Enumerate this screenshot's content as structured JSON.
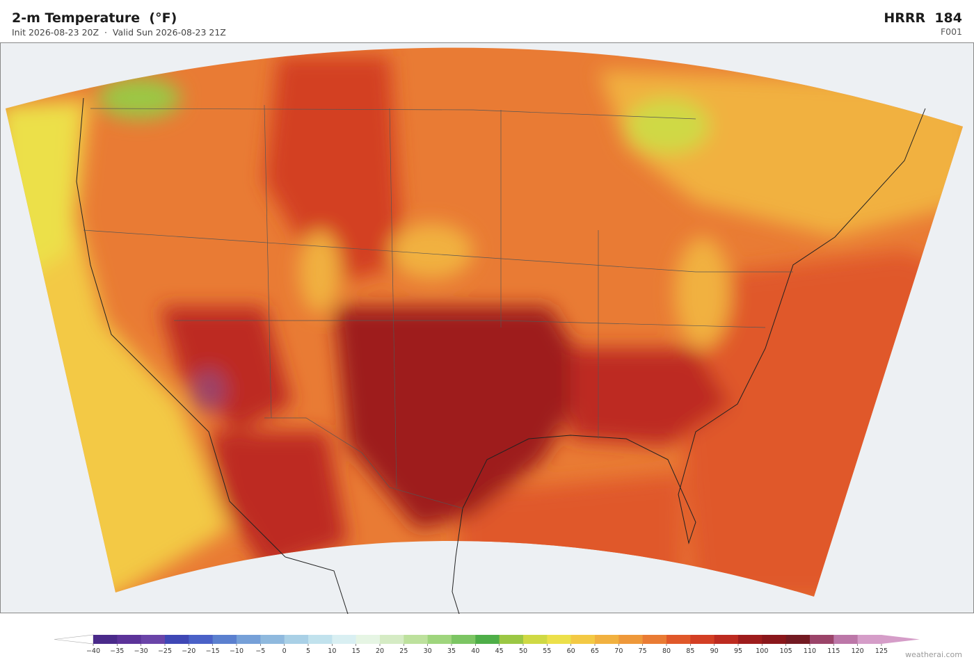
{
  "header": {
    "title": "2-m Temperature  (°F)",
    "subtitle": "Init 2026-08-23 20Z  ·  Valid Sun 2026-08-23 21Z",
    "model": "HRRR  184",
    "forecast_hour": "F001"
  },
  "colorbar": {
    "ticks": [
      "−40",
      "−35",
      "−30",
      "−25",
      "−20",
      "−15",
      "−10",
      "−5",
      "0",
      "5",
      "10",
      "15",
      "20",
      "25",
      "30",
      "35",
      "40",
      "45",
      "50",
      "55",
      "60",
      "65",
      "70",
      "75",
      "80",
      "85",
      "90",
      "95",
      "100",
      "105",
      "110",
      "115",
      "120",
      "125"
    ],
    "colors": [
      "#4a2a8a",
      "#5c3399",
      "#6a44a8",
      "#3f47b5",
      "#4a61c7",
      "#5b80cf",
      "#76a0d8",
      "#8fb9de",
      "#a9d0e6",
      "#c1e2ed",
      "#d9eff2",
      "#e6f5e4",
      "#d5ebc4",
      "#bde19d",
      "#9fd57d",
      "#7cc563",
      "#4eae48",
      "#9bc744",
      "#cfd944",
      "#ece04a",
      "#f3c944",
      "#f1b140",
      "#ee983a",
      "#e97b34",
      "#e0582a",
      "#d33f24",
      "#bd2b20",
      "#9e1c1c",
      "#8a171b",
      "#731a22",
      "#9b4469",
      "#bc77a8",
      "#d59dc8"
    ],
    "under_color": "#ffffff",
    "over_color": "#d59dc8"
  },
  "footer": {
    "credit": "weatherai.com"
  }
}
